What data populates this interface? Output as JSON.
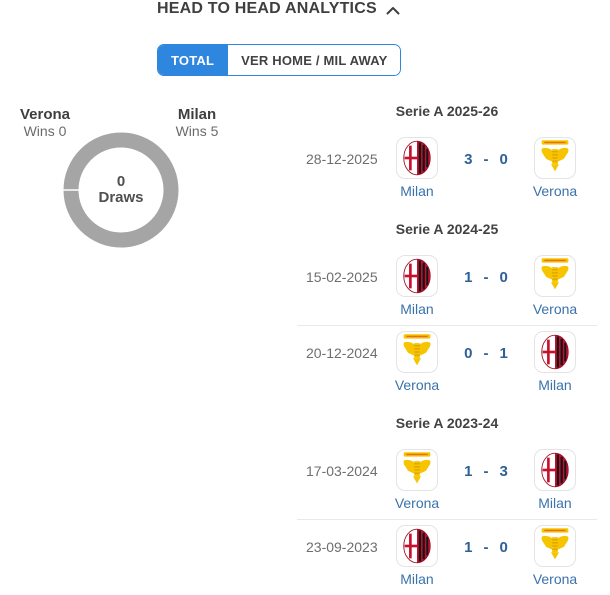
{
  "header": {
    "title": "HEAD TO HEAD ANALYTICS",
    "collapse_icon": "chevron-up"
  },
  "tabs": [
    {
      "label": "TOTAL",
      "active": true
    },
    {
      "label": "VER HOME / MIL AWAY",
      "active": false
    }
  ],
  "chart": {
    "left_team": {
      "name": "Verona",
      "wins_label": "Wins 0"
    },
    "right_team": {
      "name": "Milan",
      "wins_label": "Wins 5"
    },
    "center_value": "0",
    "center_label": "Draws",
    "ring_color": "#a5a5a5"
  },
  "chart_data": {
    "type": "pie",
    "labels": [
      "Verona wins",
      "Draws",
      "Milan wins"
    ],
    "values": [
      0,
      0,
      5
    ],
    "title": "Head to head results donut",
    "legend_position": "none",
    "colors": [
      "#a5a5a5",
      "#a5a5a5",
      "#a5a5a5"
    ]
  },
  "colors": {
    "accent_blue": "#2e86de",
    "score_blue": "#2e6195",
    "team_link_blue": "#3a72ab",
    "milan_red": "#c8102e",
    "verona_yellow": "#f6c500"
  },
  "score_sep": "-",
  "sections": [
    {
      "title": "Serie A 2025-26",
      "matches": [
        {
          "date": "28-12-2025",
          "home_team": "Milan",
          "away_team": "Verona",
          "home_score": "3",
          "away_score": "0"
        }
      ]
    },
    {
      "title": "Serie A 2024-25",
      "matches": [
        {
          "date": "15-02-2025",
          "home_team": "Milan",
          "away_team": "Verona",
          "home_score": "1",
          "away_score": "0"
        },
        {
          "date": "20-12-2024",
          "home_team": "Verona",
          "away_team": "Milan",
          "home_score": "0",
          "away_score": "1"
        }
      ]
    },
    {
      "title": "Serie A 2023-24",
      "matches": [
        {
          "date": "17-03-2024",
          "home_team": "Verona",
          "away_team": "Milan",
          "home_score": "1",
          "away_score": "3"
        },
        {
          "date": "23-09-2023",
          "home_team": "Milan",
          "away_team": "Verona",
          "home_score": "1",
          "away_score": "0"
        }
      ]
    }
  ]
}
